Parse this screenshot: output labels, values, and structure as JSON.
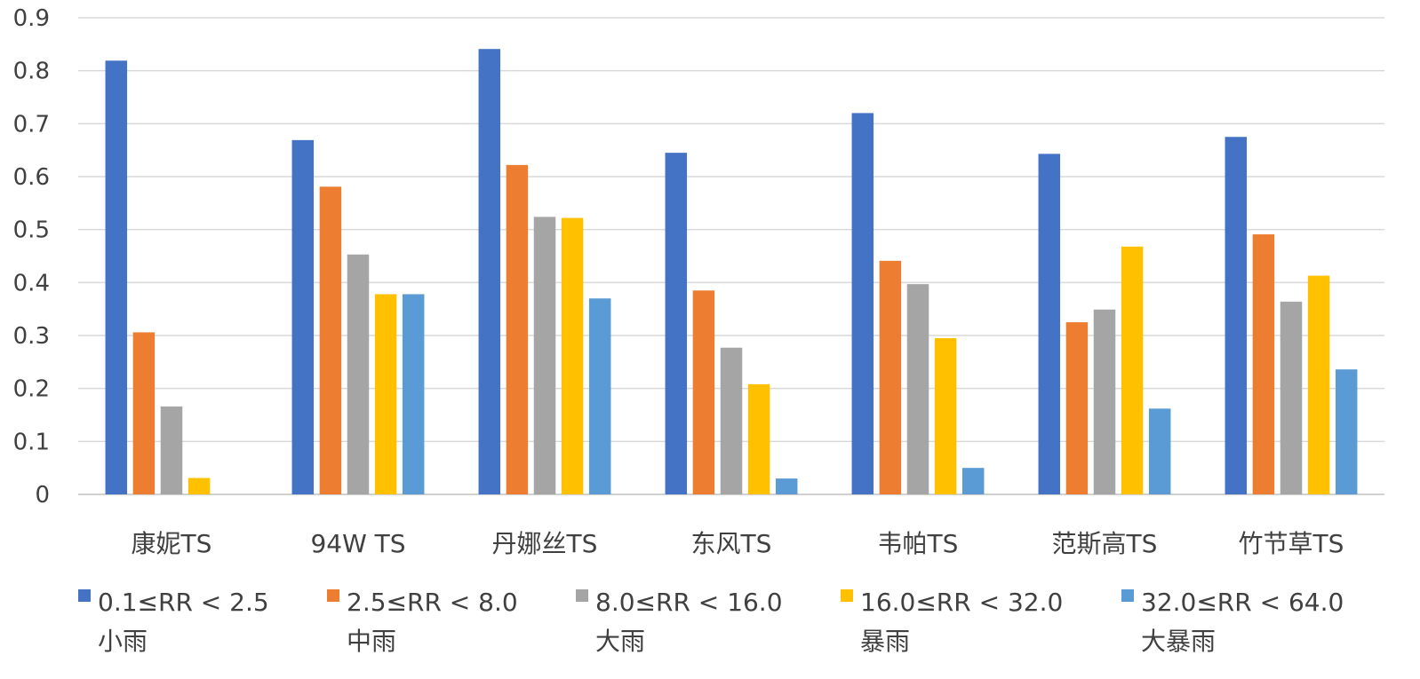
{
  "chart_data": {
    "type": "bar",
    "title": "",
    "xlabel": "",
    "ylabel": "",
    "ylim": [
      0,
      0.9
    ],
    "yticks": [
      "0",
      "0.1",
      "0.2",
      "0.3",
      "0.4",
      "0.5",
      "0.6",
      "0.7",
      "0.8",
      "0.9"
    ],
    "grid": true,
    "legend_position": "bottom",
    "categories": [
      "康妮TS",
      "94W TS",
      "丹娜丝TS",
      "东风TS",
      "韦帕TS",
      "范斯高TS",
      "竹节草TS"
    ],
    "series": [
      {
        "name": "0.1≤RR < 2.5",
        "sublabel": "小雨",
        "color": "#4472C4",
        "values": [
          0.819,
          0.669,
          0.841,
          0.645,
          0.72,
          0.643,
          0.675
        ]
      },
      {
        "name": "2.5≤RR < 8.0",
        "sublabel": "中雨",
        "color": "#ED7D31",
        "values": [
          0.306,
          0.581,
          0.622,
          0.385,
          0.441,
          0.325,
          0.491
        ]
      },
      {
        "name": "8.0≤RR < 16.0",
        "sublabel": "大雨",
        "color": "#A5A5A5",
        "values": [
          0.166,
          0.453,
          0.524,
          0.277,
          0.397,
          0.349,
          0.364
        ]
      },
      {
        "name": "16.0≤RR < 32.0",
        "sublabel": "暴雨",
        "color": "#FFC000",
        "values": [
          0.031,
          0.378,
          0.522,
          0.208,
          0.295,
          0.468,
          0.413
        ]
      },
      {
        "name": "32.0≤RR < 64.0",
        "sublabel": "大暴雨",
        "color": "#5B9BD5",
        "values": [
          0.0,
          0.378,
          0.37,
          0.03,
          0.05,
          0.162,
          0.236
        ]
      }
    ]
  }
}
